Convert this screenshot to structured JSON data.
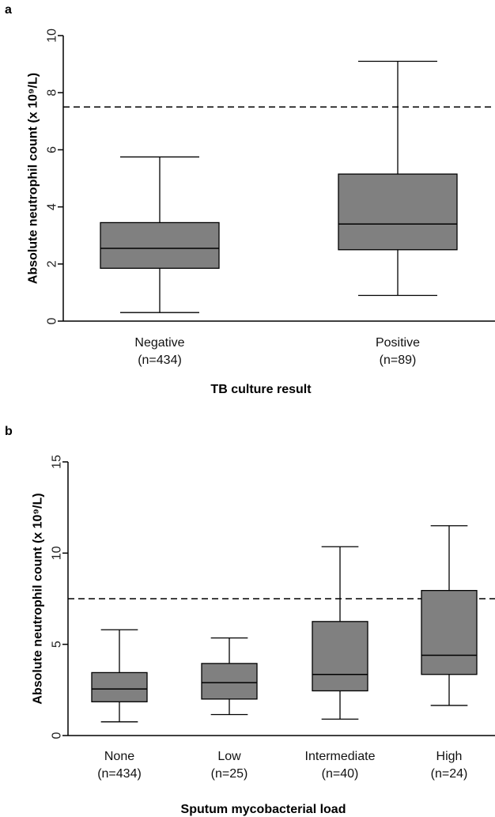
{
  "chart_data": [
    {
      "panel": "a",
      "type": "box",
      "ylabel": "Absolute neutrophil count (x 10⁹/L)",
      "xlabel": "TB culture result",
      "ylim": [
        0,
        10
      ],
      "yticks": [
        0,
        2,
        4,
        6,
        8,
        10
      ],
      "reference_line": 7.5,
      "box_color": "#808080",
      "categories": [
        {
          "label": "Negative",
          "n": "(n=434)",
          "min": 0.3,
          "q1": 1.85,
          "median": 2.55,
          "q3": 3.45,
          "max": 5.75
        },
        {
          "label": "Positive",
          "n": "(n=89)",
          "min": 0.9,
          "q1": 2.5,
          "median": 3.4,
          "q3": 5.15,
          "max": 9.1
        }
      ]
    },
    {
      "panel": "b",
      "type": "box",
      "ylabel": "Absolute neutrophil count (x 10⁹/L)",
      "xlabel": "Sputum mycobacterial load",
      "ylim": [
        0,
        15
      ],
      "yticks": [
        0,
        5,
        10,
        15
      ],
      "reference_line": 7.5,
      "box_color": "#808080",
      "categories": [
        {
          "label": "None",
          "n": "(n=434)",
          "min": 0.75,
          "q1": 1.85,
          "median": 2.55,
          "q3": 3.45,
          "max": 5.8
        },
        {
          "label": "Low",
          "n": "(n=25)",
          "min": 1.15,
          "q1": 2.0,
          "median": 2.9,
          "q3": 3.95,
          "max": 5.35
        },
        {
          "label": "Intermediate",
          "n": "(n=40)",
          "min": 0.9,
          "q1": 2.45,
          "median": 3.35,
          "q3": 6.25,
          "max": 10.35
        },
        {
          "label": "High",
          "n": "(n=24)",
          "min": 1.65,
          "q1": 3.35,
          "median": 4.4,
          "q3": 7.95,
          "max": 11.5
        }
      ]
    }
  ]
}
